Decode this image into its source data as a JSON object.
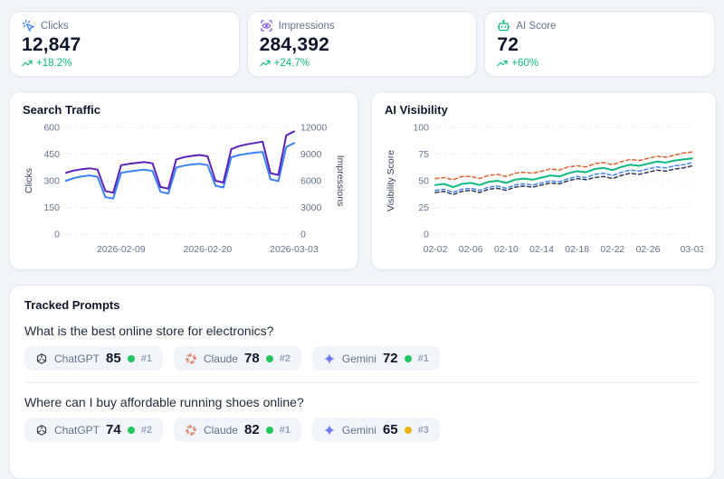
{
  "theme": {
    "background": "#f1f5f9",
    "card_border": "#e2e8f0",
    "positive": "#10b981"
  },
  "stats": [
    {
      "label": "Clicks",
      "value": "12,847",
      "trend": "+18.2%",
      "icon": "mouse-click-icon",
      "accent": "#3b82f6"
    },
    {
      "label": "Impressions",
      "value": "284,392",
      "trend": "+24.7%",
      "icon": "scan-eye-icon",
      "accent": "#8b5cf6"
    },
    {
      "label": "AI Score",
      "value": "72",
      "trend": "+60%",
      "icon": "bot-icon",
      "accent": "#10b981"
    }
  ],
  "chart_data": [
    {
      "type": "line",
      "title": "Search Traffic",
      "n_points": 30,
      "x_tick_labels": [
        {
          "label": "2026-02-09",
          "index": 7
        },
        {
          "label": "2026-02-20",
          "index": 18
        },
        {
          "label": "2026-03-03",
          "index": 29
        }
      ],
      "left_axis": {
        "label": "Clicks",
        "ticks": [
          0,
          150,
          300,
          450,
          600
        ],
        "lim": [
          0,
          600
        ]
      },
      "right_axis": {
        "label": "Impressions",
        "ticks": [
          0,
          3000,
          6000,
          9000,
          12000
        ],
        "lim": [
          0,
          12000
        ]
      },
      "grid": true,
      "legend": "none",
      "series": [
        {
          "name": "Clicks",
          "axis": "left",
          "color": "#3b82f6",
          "style": "solid",
          "values": [
            300,
            315,
            325,
            330,
            322,
            208,
            200,
            345,
            352,
            358,
            362,
            355,
            238,
            228,
            375,
            385,
            392,
            395,
            388,
            272,
            262,
            432,
            445,
            452,
            458,
            462,
            308,
            298,
            490,
            512
          ]
        },
        {
          "name": "Impressions",
          "axis": "right",
          "color": "#5b21b6",
          "style": "solid",
          "values": [
            6900,
            7150,
            7300,
            7400,
            7250,
            4850,
            4650,
            7750,
            7900,
            8000,
            8100,
            7950,
            5300,
            5100,
            8400,
            8650,
            8800,
            8900,
            8750,
            6000,
            5800,
            9550,
            9900,
            10100,
            10250,
            10400,
            6850,
            6650,
            11100,
            11550
          ]
        }
      ]
    },
    {
      "type": "line",
      "title": "AI Visibility",
      "n_points": 30,
      "x_tick_labels": [
        {
          "label": "02-02",
          "index": 0
        },
        {
          "label": "02-06",
          "index": 4
        },
        {
          "label": "02-10",
          "index": 8
        },
        {
          "label": "02-14",
          "index": 12
        },
        {
          "label": "02-18",
          "index": 16
        },
        {
          "label": "02-22",
          "index": 20
        },
        {
          "label": "02-26",
          "index": 24
        },
        {
          "label": "03-03",
          "index": 29
        }
      ],
      "left_axis": {
        "label": "Visibility Score",
        "ticks": [
          0,
          25,
          50,
          75,
          100
        ],
        "lim": [
          0,
          100
        ]
      },
      "grid": true,
      "legend": "none",
      "series": [
        {
          "name": "orange-dashed",
          "axis": "left",
          "color": "#e0602f",
          "style": "dashed",
          "values": [
            52,
            53,
            51,
            54,
            54,
            52,
            55,
            56,
            54,
            57,
            58,
            57,
            59,
            61,
            60,
            63,
            64,
            63,
            66,
            67,
            65,
            68,
            70,
            69,
            71,
            73,
            72,
            74,
            76,
            77
          ]
        },
        {
          "name": "green-solid",
          "axis": "left",
          "color": "#10b981",
          "style": "solid",
          "values": [
            46,
            47,
            44,
            47,
            48,
            46,
            49,
            50,
            48,
            51,
            52,
            51,
            53,
            55,
            54,
            57,
            59,
            58,
            61,
            62,
            60,
            63,
            65,
            64,
            66,
            68,
            67,
            69,
            70,
            71
          ]
        },
        {
          "name": "blue-dashed",
          "axis": "left",
          "color": "#4285f4",
          "style": "dashed",
          "values": [
            41,
            42,
            39,
            42,
            43,
            41,
            44,
            45,
            43,
            46,
            47,
            46,
            48,
            50,
            49,
            52,
            54,
            53,
            56,
            57,
            55,
            58,
            60,
            59,
            61,
            63,
            62,
            64,
            65,
            67
          ]
        },
        {
          "name": "navy-dashed",
          "axis": "left",
          "color": "#2e3a59",
          "style": "dashed",
          "values": [
            39,
            40,
            37,
            40,
            41,
            39,
            42,
            43,
            41,
            44,
            45,
            44,
            46,
            48,
            47,
            50,
            52,
            51,
            53,
            54,
            52,
            55,
            57,
            56,
            58,
            60,
            59,
            61,
            62,
            64
          ]
        }
      ]
    }
  ],
  "prompts": {
    "title": "Tracked Prompts",
    "items": [
      {
        "question": "What is the best online store for electronics?",
        "models": [
          {
            "name": "ChatGPT",
            "score": "85",
            "rank": "#1",
            "dot_color": "#22c55e",
            "brand_color": "#3f3f46"
          },
          {
            "name": "Claude",
            "score": "78",
            "rank": "#2",
            "dot_color": "#22c55e",
            "brand_color": "#d97757"
          },
          {
            "name": "Gemini",
            "score": "72",
            "rank": "#1",
            "dot_color": "#22c55e",
            "brand_color": "#4285f4"
          }
        ]
      },
      {
        "question": "Where can I buy affordable running shoes online?",
        "models": [
          {
            "name": "ChatGPT",
            "score": "74",
            "rank": "#2",
            "dot_color": "#22c55e",
            "brand_color": "#3f3f46"
          },
          {
            "name": "Claude",
            "score": "82",
            "rank": "#1",
            "dot_color": "#22c55e",
            "brand_color": "#d97757"
          },
          {
            "name": "Gemini",
            "score": "65",
            "rank": "#3",
            "dot_color": "#eab308",
            "brand_color": "#4285f4"
          }
        ]
      }
    ]
  }
}
